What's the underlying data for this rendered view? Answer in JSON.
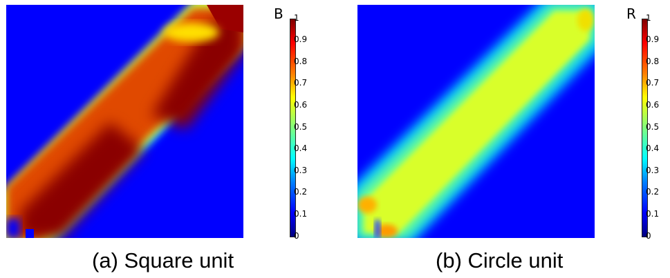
{
  "panels": [
    {
      "caption": "(a) Square unit",
      "colorbar_label": "B",
      "ticks": [
        "1",
        "0.9",
        "0.8",
        "0.7",
        "0.6",
        "0.5",
        "0.4",
        "0.3",
        "0.2",
        "0.1",
        "0"
      ]
    },
    {
      "caption": "(b) Circle unit",
      "colorbar_label": "R",
      "ticks": [
        "1",
        "0.9",
        "0.8",
        "0.7",
        "0.6",
        "0.5",
        "0.4",
        "0.3",
        "0.2",
        "0.1",
        "0"
      ]
    }
  ],
  "colormap": "jet",
  "colors": {
    "background": "#0000ff",
    "ring": "#00e5ff",
    "square_band": "#d83a00",
    "square_core": "#8a0000",
    "circle_band": "#d9ff2a"
  }
}
